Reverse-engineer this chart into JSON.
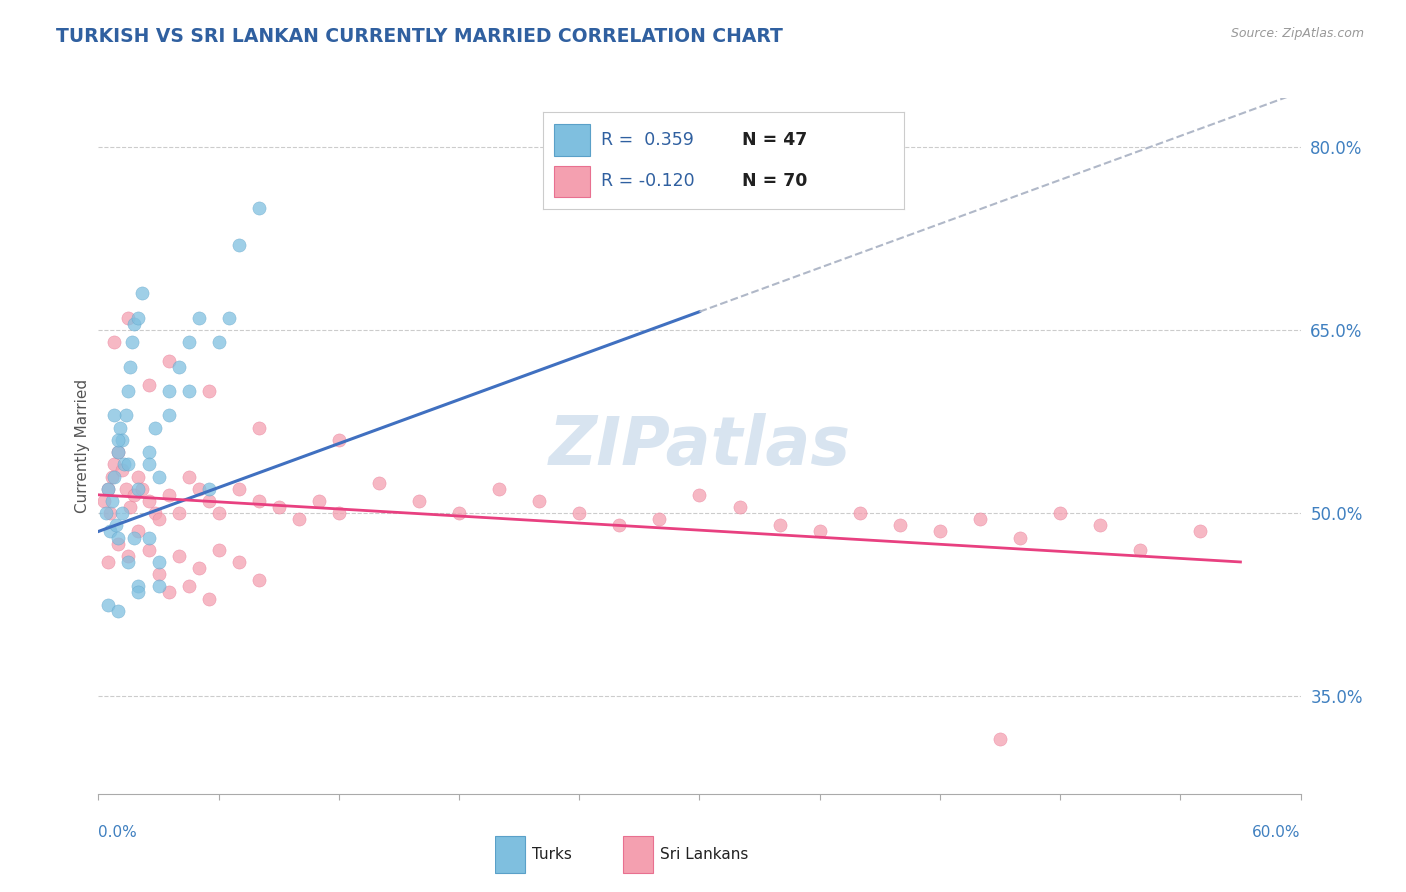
{
  "title": "TURKISH VS SRI LANKAN CURRENTLY MARRIED CORRELATION CHART",
  "source": "Source: ZipAtlas.com",
  "ylabel": "Currently Married",
  "xlim": [
    0.0,
    60.0
  ],
  "ylim": [
    27.0,
    84.0
  ],
  "yticks": [
    35.0,
    50.0,
    65.0,
    80.0
  ],
  "turks_R": 0.359,
  "turks_N": 47,
  "srilankans_R": -0.12,
  "srilankans_N": 70,
  "turk_color": "#7fbfdf",
  "turk_edge_color": "#5aa0c8",
  "srilanka_color": "#f4a0b0",
  "srilanka_edge_color": "#e87090",
  "turk_line_color": "#4070c0",
  "srilanka_line_color": "#e84080",
  "dash_line_color": "#b0b8c8",
  "watermark_color": "#d8e4f0",
  "title_color": "#3060a0",
  "axis_label_color": "#4080c0",
  "legend_color": "#3060a0",
  "legend_n_color": "#202020",
  "turk_line_x0": 0.0,
  "turk_line_y0": 48.5,
  "turk_line_x1": 30.0,
  "turk_line_y1": 66.5,
  "turk_dash_x0": 30.0,
  "turk_dash_y0": 66.5,
  "turk_dash_x1": 60.0,
  "turk_dash_y1": 84.5,
  "sl_line_x0": 0.0,
  "sl_line_y0": 51.5,
  "sl_line_x1": 57.0,
  "sl_line_y1": 46.0,
  "turks_x": [
    0.4,
    0.5,
    0.6,
    0.7,
    0.8,
    0.9,
    1.0,
    1.1,
    1.2,
    1.3,
    1.4,
    1.5,
    1.6,
    1.7,
    1.8,
    2.0,
    2.2,
    2.5,
    2.8,
    3.0,
    3.5,
    4.0,
    4.5,
    5.0,
    5.5,
    6.0,
    7.0,
    8.0,
    1.0,
    1.2,
    1.5,
    1.8,
    2.0,
    2.5,
    3.0,
    0.8,
    1.0,
    1.5,
    2.0,
    2.5,
    3.5,
    4.5,
    6.5,
    0.5,
    1.0,
    2.0,
    3.0
  ],
  "turks_y": [
    50.0,
    52.0,
    48.5,
    51.0,
    53.0,
    49.0,
    55.0,
    57.0,
    56.0,
    54.0,
    58.0,
    60.0,
    62.0,
    64.0,
    65.5,
    66.0,
    68.0,
    55.0,
    57.0,
    53.0,
    60.0,
    62.0,
    64.0,
    66.0,
    52.0,
    64.0,
    72.0,
    75.0,
    48.0,
    50.0,
    46.0,
    48.0,
    44.0,
    48.0,
    46.0,
    58.0,
    56.0,
    54.0,
    52.0,
    54.0,
    58.0,
    60.0,
    66.0,
    42.5,
    42.0,
    43.5,
    44.0
  ],
  "srilanka_x": [
    0.3,
    0.5,
    0.6,
    0.7,
    0.8,
    1.0,
    1.2,
    1.4,
    1.6,
    1.8,
    2.0,
    2.2,
    2.5,
    2.8,
    3.0,
    3.5,
    4.0,
    4.5,
    5.0,
    5.5,
    6.0,
    7.0,
    8.0,
    9.0,
    10.0,
    11.0,
    12.0,
    14.0,
    16.0,
    18.0,
    20.0,
    22.0,
    24.0,
    26.0,
    28.0,
    30.0,
    32.0,
    34.0,
    36.0,
    38.0,
    40.0,
    42.0,
    44.0,
    46.0,
    48.0,
    50.0,
    52.0,
    55.0,
    0.5,
    1.0,
    1.5,
    2.0,
    2.5,
    3.0,
    4.0,
    5.0,
    6.0,
    7.0,
    8.0,
    3.5,
    4.5,
    5.5,
    0.8,
    1.5,
    2.5,
    3.5,
    5.5,
    8.0,
    12.0,
    45.0
  ],
  "srilanka_y": [
    51.0,
    52.0,
    50.0,
    53.0,
    54.0,
    55.0,
    53.5,
    52.0,
    50.5,
    51.5,
    53.0,
    52.0,
    51.0,
    50.0,
    49.5,
    51.5,
    50.0,
    53.0,
    52.0,
    51.0,
    50.0,
    52.0,
    51.0,
    50.5,
    49.5,
    51.0,
    50.0,
    52.5,
    51.0,
    50.0,
    52.0,
    51.0,
    50.0,
    49.0,
    49.5,
    51.5,
    50.5,
    49.0,
    48.5,
    50.0,
    49.0,
    48.5,
    49.5,
    48.0,
    50.0,
    49.0,
    47.0,
    48.5,
    46.0,
    47.5,
    46.5,
    48.5,
    47.0,
    45.0,
    46.5,
    45.5,
    47.0,
    46.0,
    44.5,
    43.5,
    44.0,
    43.0,
    64.0,
    66.0,
    60.5,
    62.5,
    60.0,
    57.0,
    56.0,
    31.5
  ]
}
